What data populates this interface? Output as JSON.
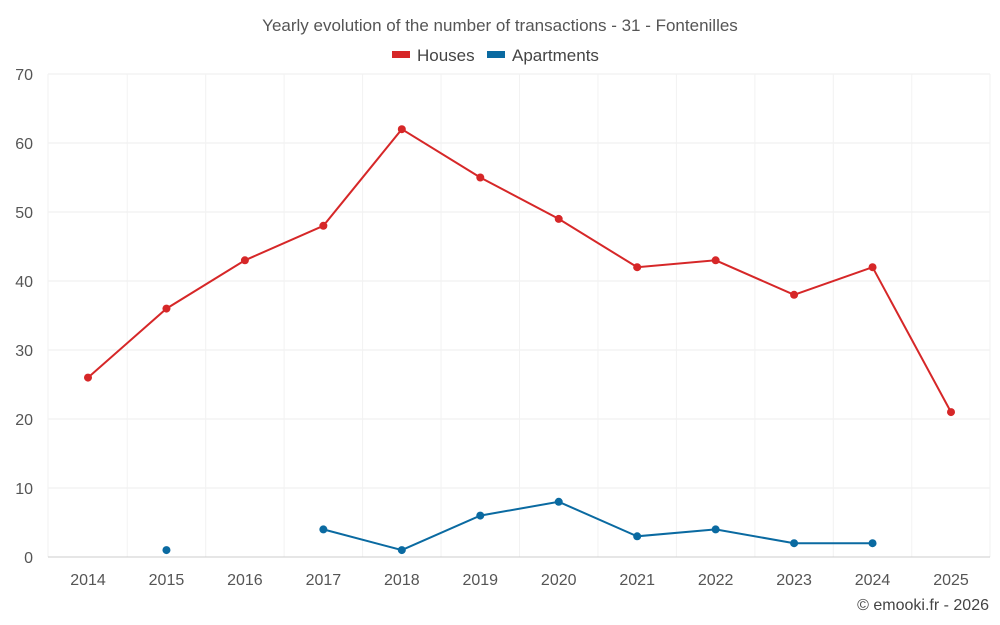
{
  "chart_data": {
    "type": "line",
    "title": "Yearly evolution of the number of transactions - 31 - Fontenilles",
    "categories": [
      "2014",
      "2015",
      "2016",
      "2017",
      "2018",
      "2019",
      "2020",
      "2021",
      "2022",
      "2023",
      "2024",
      "2025"
    ],
    "series": [
      {
        "name": "Houses",
        "color": "#d62728",
        "values": [
          26,
          36,
          43,
          48,
          62,
          55,
          49,
          42,
          43,
          38,
          42,
          21
        ]
      },
      {
        "name": "Apartments",
        "color": "#0a6aa1",
        "values": [
          null,
          1,
          null,
          4,
          1,
          6,
          8,
          3,
          4,
          2,
          2,
          null
        ]
      }
    ],
    "yticks": [
      0,
      10,
      20,
      30,
      40,
      50,
      60,
      70
    ],
    "ylim": [
      0,
      70
    ],
    "grid": true,
    "legend_position": "top-center",
    "xlabel": "",
    "ylabel": ""
  },
  "credit": "© emooki.fr - 2026"
}
